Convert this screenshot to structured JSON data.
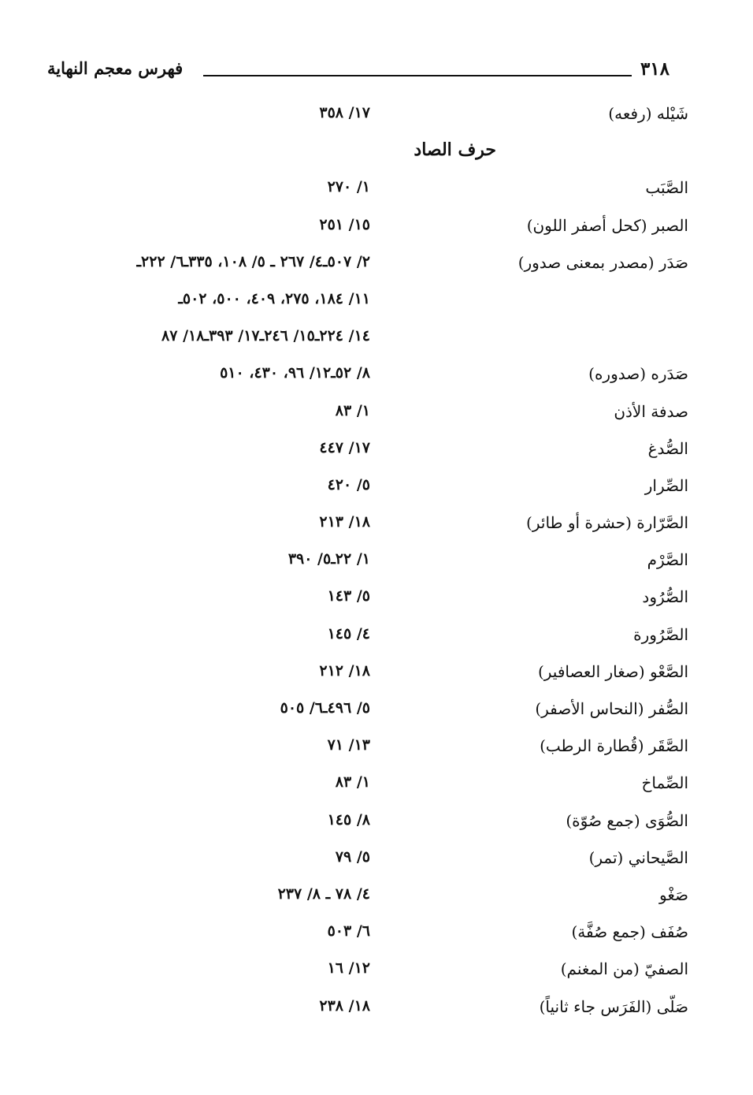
{
  "header": {
    "page_number": "٣١٨",
    "title": "فهرس معجم النهاية"
  },
  "pre_entries": [
    {
      "term": "شَيْله (رفعه)",
      "refs": [
        "١٧/ ٣٥٨"
      ]
    }
  ],
  "section_heading": "حرف الصاد",
  "entries": [
    {
      "term": "الصَّبَب",
      "refs": [
        "١/ ٢٧٠"
      ]
    },
    {
      "term": "الصبر (كحل أصفر اللون)",
      "refs": [
        "١٥/ ٢٥١"
      ]
    },
    {
      "term": "صَدَر (مصدر بمعنى صدور)",
      "refs": [
        "٢/ ٥٠٧ـ٤/ ٢٦٧ ـ ٥/ ١٠٨، ٣٣٥ـ٦/ ٢٢٢ـ",
        "١١/ ١٨٤، ٢٧٥، ٤٠٩، ٥٠٠، ٥٠٢ـ",
        "١٤/ ٢٢٤ـ١٥/ ٢٤٦ـ١٧/ ٣٩٣ـ١٨/ ٨٧"
      ]
    },
    {
      "term": "صَدَره (صدوره)",
      "refs": [
        "٨/ ٥٢ـ١٢/ ٩٦، ٤٣٠، ٥١٠"
      ]
    },
    {
      "term": "صدفة الأذن",
      "refs": [
        "١/ ٨٣"
      ]
    },
    {
      "term": "الصُّدغ",
      "refs": [
        "١٧/ ٤٤٧"
      ]
    },
    {
      "term": "الصِّرار",
      "refs": [
        "٥/ ٤٢٠"
      ]
    },
    {
      "term": "الصَّرّارة (حشرة أو طائر)",
      "refs": [
        "١٨/ ٢١٣"
      ]
    },
    {
      "term": "الصَّرْم",
      "refs": [
        "١/ ٢٢ـ٥/ ٣٩٠"
      ]
    },
    {
      "term": "الصُّرُود",
      "refs": [
        "٥/ ١٤٣"
      ]
    },
    {
      "term": "الصَّرُورة",
      "refs": [
        "٤/ ١٤٥"
      ]
    },
    {
      "term": "الصَّعْو (صغار العصافير)",
      "refs": [
        "١٨/ ٢١٢"
      ]
    },
    {
      "term": "الصُّفر (النحاس الأصفر)",
      "refs": [
        "٥/ ٤٩٦ـ٦/ ٥٠٥"
      ]
    },
    {
      "term": "الصَّقَر (قُطارة الرطب)",
      "refs": [
        "١٣/ ٧١"
      ]
    },
    {
      "term": "الصِّماخ",
      "refs": [
        "١/ ٨٣"
      ]
    },
    {
      "term": "الصُّوَى (جمع صُوّة)",
      "refs": [
        "٨/ ١٤٥"
      ]
    },
    {
      "term": "الصَّيحاني (تمر)",
      "refs": [
        "٥/ ٧٩"
      ]
    },
    {
      "term": "صَغْو",
      "refs": [
        "٤/ ٧٨ ـ ٨/ ٢٣٧"
      ]
    },
    {
      "term": "صُفَف (جمع صُفَّة)",
      "refs": [
        "٦/ ٥٠٣"
      ]
    },
    {
      "term": "الصفيّ (من المغنم)",
      "refs": [
        "١٢/ ١٦"
      ]
    },
    {
      "term": "صَلّى (الفَرَس جاء ثانياً)",
      "refs": [
        "١٨/ ٢٣٨"
      ]
    }
  ]
}
